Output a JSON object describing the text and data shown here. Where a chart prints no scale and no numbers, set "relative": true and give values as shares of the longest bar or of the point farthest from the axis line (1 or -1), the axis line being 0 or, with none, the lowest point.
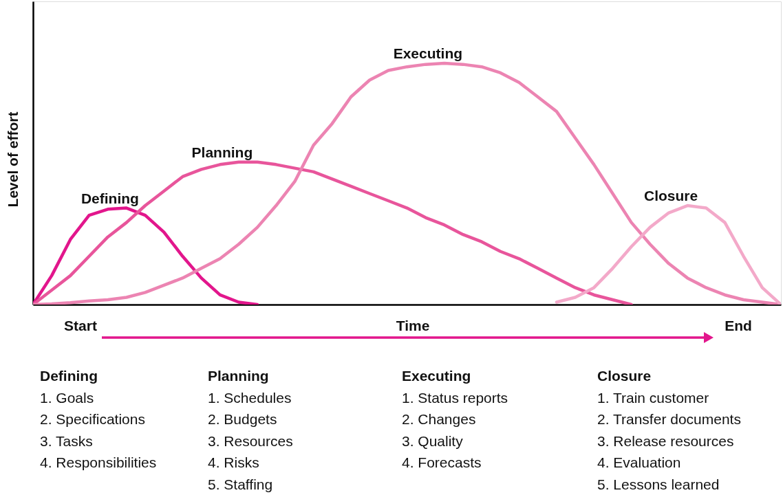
{
  "chart_data": {
    "type": "line",
    "relative": true,
    "xlabel": "Time",
    "ylabel": "Level of effort",
    "marker": "none",
    "line_style": "solid",
    "categories": [
      null,
      null,
      null,
      null,
      null,
      null,
      null,
      null,
      null,
      null,
      null,
      null,
      null,
      null,
      null,
      null,
      null,
      null,
      null,
      null,
      null,
      null,
      null,
      null,
      null,
      null,
      null,
      null,
      null,
      null,
      null,
      null,
      null,
      null,
      null,
      null,
      null,
      null,
      null,
      null,
      null
    ],
    "series": [
      {
        "name": "Defining",
        "color": "#e2168c",
        "values": [
          0,
          0.12,
          0.27,
          0.37,
          0.395,
          0.4,
          0.37,
          0.3,
          0.2,
          0.11,
          0.04,
          0.01,
          0,
          null,
          null,
          null,
          null,
          null,
          null,
          null,
          null,
          null,
          null,
          null,
          null,
          null,
          null,
          null,
          null,
          null,
          null,
          null,
          null,
          null,
          null,
          null,
          null,
          null,
          null,
          null,
          null
        ]
      },
      {
        "name": "Planning",
        "color": "#e8559b",
        "values": [
          0,
          0.06,
          0.12,
          0.2,
          0.28,
          0.34,
          0.41,
          0.47,
          0.53,
          0.56,
          0.58,
          0.59,
          0.59,
          0.58,
          0.565,
          0.55,
          0.52,
          0.49,
          0.46,
          0.43,
          0.4,
          0.36,
          0.33,
          0.29,
          0.26,
          0.22,
          0.19,
          0.15,
          0.11,
          0.07,
          0.04,
          0.02,
          0,
          null,
          null,
          null,
          null,
          null,
          null,
          null,
          null
        ]
      },
      {
        "name": "Executing",
        "color": "#ec84b2",
        "values": [
          0,
          0.003,
          0.008,
          0.015,
          0.02,
          0.03,
          0.05,
          0.08,
          0.11,
          0.15,
          0.19,
          0.25,
          0.32,
          0.41,
          0.51,
          0.66,
          0.75,
          0.86,
          0.93,
          0.97,
          0.985,
          0.995,
          1.0,
          0.995,
          0.985,
          0.96,
          0.92,
          0.86,
          0.8,
          0.69,
          0.58,
          0.46,
          0.34,
          0.25,
          0.17,
          0.11,
          0.07,
          0.04,
          0.02,
          0.01,
          0
        ]
      },
      {
        "name": "Closure",
        "color": "#f3a9c9",
        "values": [
          null,
          null,
          null,
          null,
          null,
          null,
          null,
          null,
          null,
          null,
          null,
          null,
          null,
          null,
          null,
          null,
          null,
          null,
          null,
          null,
          null,
          null,
          null,
          null,
          null,
          null,
          null,
          null,
          0.01,
          0.03,
          0.07,
          0.15,
          0.24,
          0.32,
          0.38,
          0.41,
          0.4,
          0.34,
          0.2,
          0.07,
          0
        ]
      }
    ],
    "annotations": [
      "Start",
      "End",
      "Defining\n1. Goals\n2. Specifications\n3. Tasks\n4. Responsibilities",
      "Planning\n1. Schedules\n2. Budgets\n3. Resources\n4. Risks\n5. Staffing",
      "Executing\n1. Status reports\n2. Changes\n3. Quality\n4. Forecasts",
      "Closure\n1. Train customer\n2. Transfer documents\n3. Release resources\n4. Evaluation\n5. Lessons learned"
    ]
  }
}
